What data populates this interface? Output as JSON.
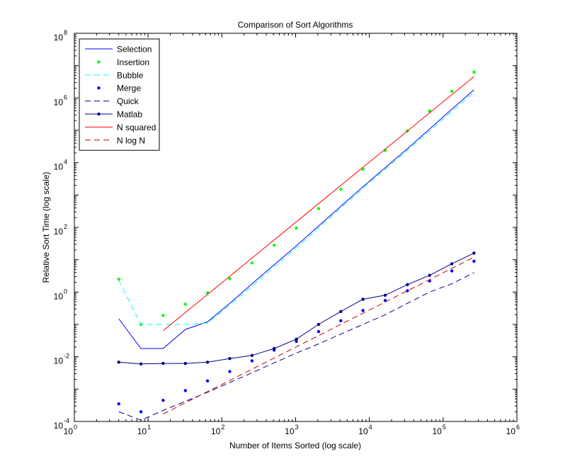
{
  "chart_data": {
    "type": "line",
    "title": "Comparison of Sort Algorithms",
    "xlabel": "Number of Items Sorted (log scale)",
    "ylabel": "Relative Sort Time (log scale)",
    "xscale": "log",
    "yscale": "log",
    "xlim": [
      1,
      1000000
    ],
    "ylim": [
      0.0001,
      100000000
    ],
    "grid": false,
    "legend_position": "top-left",
    "x_ticks": [
      {
        "base": "10",
        "exp": "0",
        "value": 1
      },
      {
        "base": "10",
        "exp": "1",
        "value": 10
      },
      {
        "base": "10",
        "exp": "2",
        "value": 100
      },
      {
        "base": "10",
        "exp": "3",
        "value": 1000
      },
      {
        "base": "10",
        "exp": "4",
        "value": 10000
      },
      {
        "base": "10",
        "exp": "5",
        "value": 100000
      },
      {
        "base": "10",
        "exp": "6",
        "value": 1000000
      }
    ],
    "y_ticks": [
      {
        "base": "10",
        "exp": "-4",
        "value": 0.0001
      },
      {
        "base": "10",
        "exp": "-2",
        "value": 0.01
      },
      {
        "base": "10",
        "exp": "0",
        "value": 1
      },
      {
        "base": "10",
        "exp": "2",
        "value": 100
      },
      {
        "base": "10",
        "exp": "4",
        "value": 10000
      },
      {
        "base": "10",
        "exp": "6",
        "value": 1000000
      },
      {
        "base": "10",
        "exp": "8",
        "value": 100000000
      }
    ],
    "x": [
      4,
      8,
      16,
      32,
      64,
      128,
      256,
      512,
      1024,
      2048,
      4096,
      8192,
      16384,
      32768,
      65536,
      131072,
      262144
    ],
    "series": [
      {
        "name": "Selection",
        "color": "#0000ff",
        "dash": "solid",
        "marker": "none",
        "values": [
          0.15,
          0.018,
          0.018,
          0.07,
          0.12,
          0.45,
          1.8,
          7,
          27,
          110,
          450,
          1800,
          7000,
          27000,
          110000,
          450000,
          1800000
        ]
      },
      {
        "name": "Insertion",
        "color": "#00ff00",
        "dash": "none",
        "marker": "dot",
        "values": [
          2.5,
          0.1,
          0.19,
          0.42,
          0.95,
          2.6,
          8,
          28,
          95,
          380,
          1500,
          6200,
          24000,
          95000,
          400000,
          1600000,
          6300000
        ]
      },
      {
        "name": "Bubble",
        "color": "#00ffff",
        "dash": "dashed",
        "marker": "none",
        "values": [
          2.3,
          0.1,
          0.1,
          0.1,
          0.11,
          0.4,
          1.5,
          6,
          23,
          95,
          400,
          1600,
          6200,
          24000,
          95000,
          380000,
          1500000
        ]
      },
      {
        "name": "Merge",
        "color": "#0000ff",
        "dash": "none",
        "marker": "dot",
        "values": [
          0.00035,
          0.0002,
          0.00045,
          0.0009,
          0.0018,
          0.0035,
          0.0075,
          0.016,
          0.03,
          0.06,
          0.13,
          0.27,
          0.55,
          1.1,
          2.2,
          4.5,
          9
        ]
      },
      {
        "name": "Quick",
        "color": "#00008b",
        "dash": "dashed",
        "marker": "none",
        "values": [
          0.0002,
          0.00011,
          0.00022,
          0.00042,
          0.0008,
          0.0016,
          0.0032,
          0.0065,
          0.013,
          0.025,
          0.05,
          0.1,
          0.2,
          0.45,
          1,
          1.8,
          4
        ]
      },
      {
        "name": "Matlab",
        "color": "#00008b",
        "dash": "solid",
        "marker": "dot",
        "values": [
          0.0068,
          0.006,
          0.0062,
          0.0062,
          0.0068,
          0.0088,
          0.011,
          0.018,
          0.035,
          0.1,
          0.25,
          0.6,
          0.8,
          1.7,
          3.3,
          7.5,
          16
        ]
      },
      {
        "name": "N squared",
        "color": "#ff0000",
        "dash": "solid",
        "marker": "none",
        "x": [
          16,
          262144
        ],
        "values": [
          0.064,
          4600000
        ]
      },
      {
        "name": "N log N",
        "color": "#cc0000",
        "dash": "dashed",
        "marker": "none",
        "x": [
          16,
          262144
        ],
        "values": [
          0.00017,
          12
        ]
      }
    ]
  }
}
